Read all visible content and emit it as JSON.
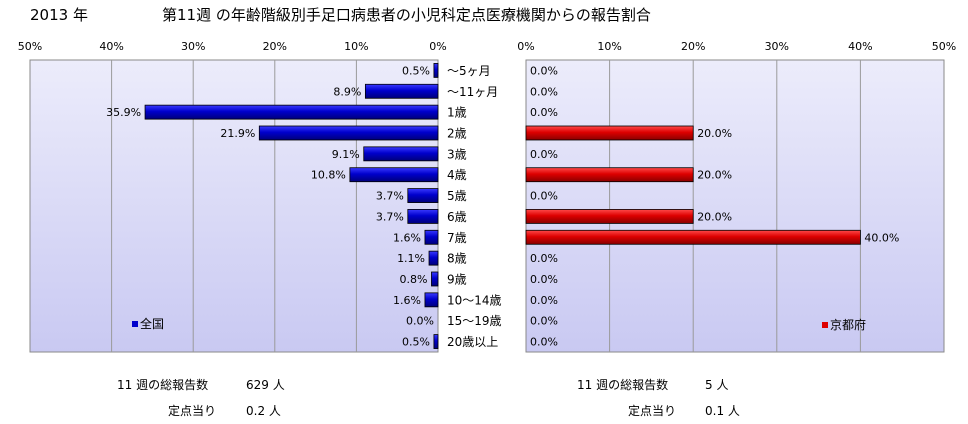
{
  "header": {
    "year": "2013 年",
    "title": "第11週 の年齢階級別手足口病患者の小児科定点医療機関からの報告割合"
  },
  "chart_data": {
    "type": "bar",
    "orientation": "horizontal",
    "categories": [
      "～5ヶ月",
      "～11ヶ月",
      "1歳",
      "2歳",
      "3歳",
      "4歳",
      "5歳",
      "6歳",
      "7歳",
      "8歳",
      "9歳",
      "10～14歳",
      "15～19歳",
      "20歳以上"
    ],
    "xlim": [
      0,
      50
    ],
    "xticks": [
      "0%",
      "10%",
      "20%",
      "30%",
      "40%",
      "50%"
    ],
    "grid": true,
    "series": [
      {
        "name": "全国",
        "color": "#0000cc",
        "values": [
          0.5,
          8.9,
          35.9,
          21.9,
          9.1,
          10.8,
          3.7,
          3.7,
          1.6,
          1.1,
          0.8,
          1.6,
          0.0,
          0.5
        ],
        "labels": [
          "0.5%",
          "8.9%",
          "35.9%",
          "21.9%",
          "9.1%",
          "10.8%",
          "3.7%",
          "3.7%",
          "1.6%",
          "1.1%",
          "0.8%",
          "1.6%",
          "0.0%",
          "0.5%"
        ]
      },
      {
        "name": "京都府",
        "color": "#dd0000",
        "values": [
          0,
          0,
          0,
          20,
          0,
          20,
          0,
          20,
          40,
          0,
          0,
          0,
          0,
          0
        ],
        "labels": [
          "0.0%",
          "0.0%",
          "0.0%",
          "20.0%",
          "0.0%",
          "20.0%",
          "0.0%",
          "20.0%",
          "40.0%",
          "0.0%",
          "0.0%",
          "0.0%",
          "0.0%",
          "0.0%"
        ]
      }
    ]
  },
  "footer": {
    "left": {
      "total_label": "11 週の総報告数",
      "total_value": "629 人",
      "per_label": "定点当り",
      "per_value": "0.2 人"
    },
    "right": {
      "total_label": "11 週の総報告数",
      "total_value": "5 人",
      "per_label": "定点当り",
      "per_value": "0.1 人"
    }
  }
}
